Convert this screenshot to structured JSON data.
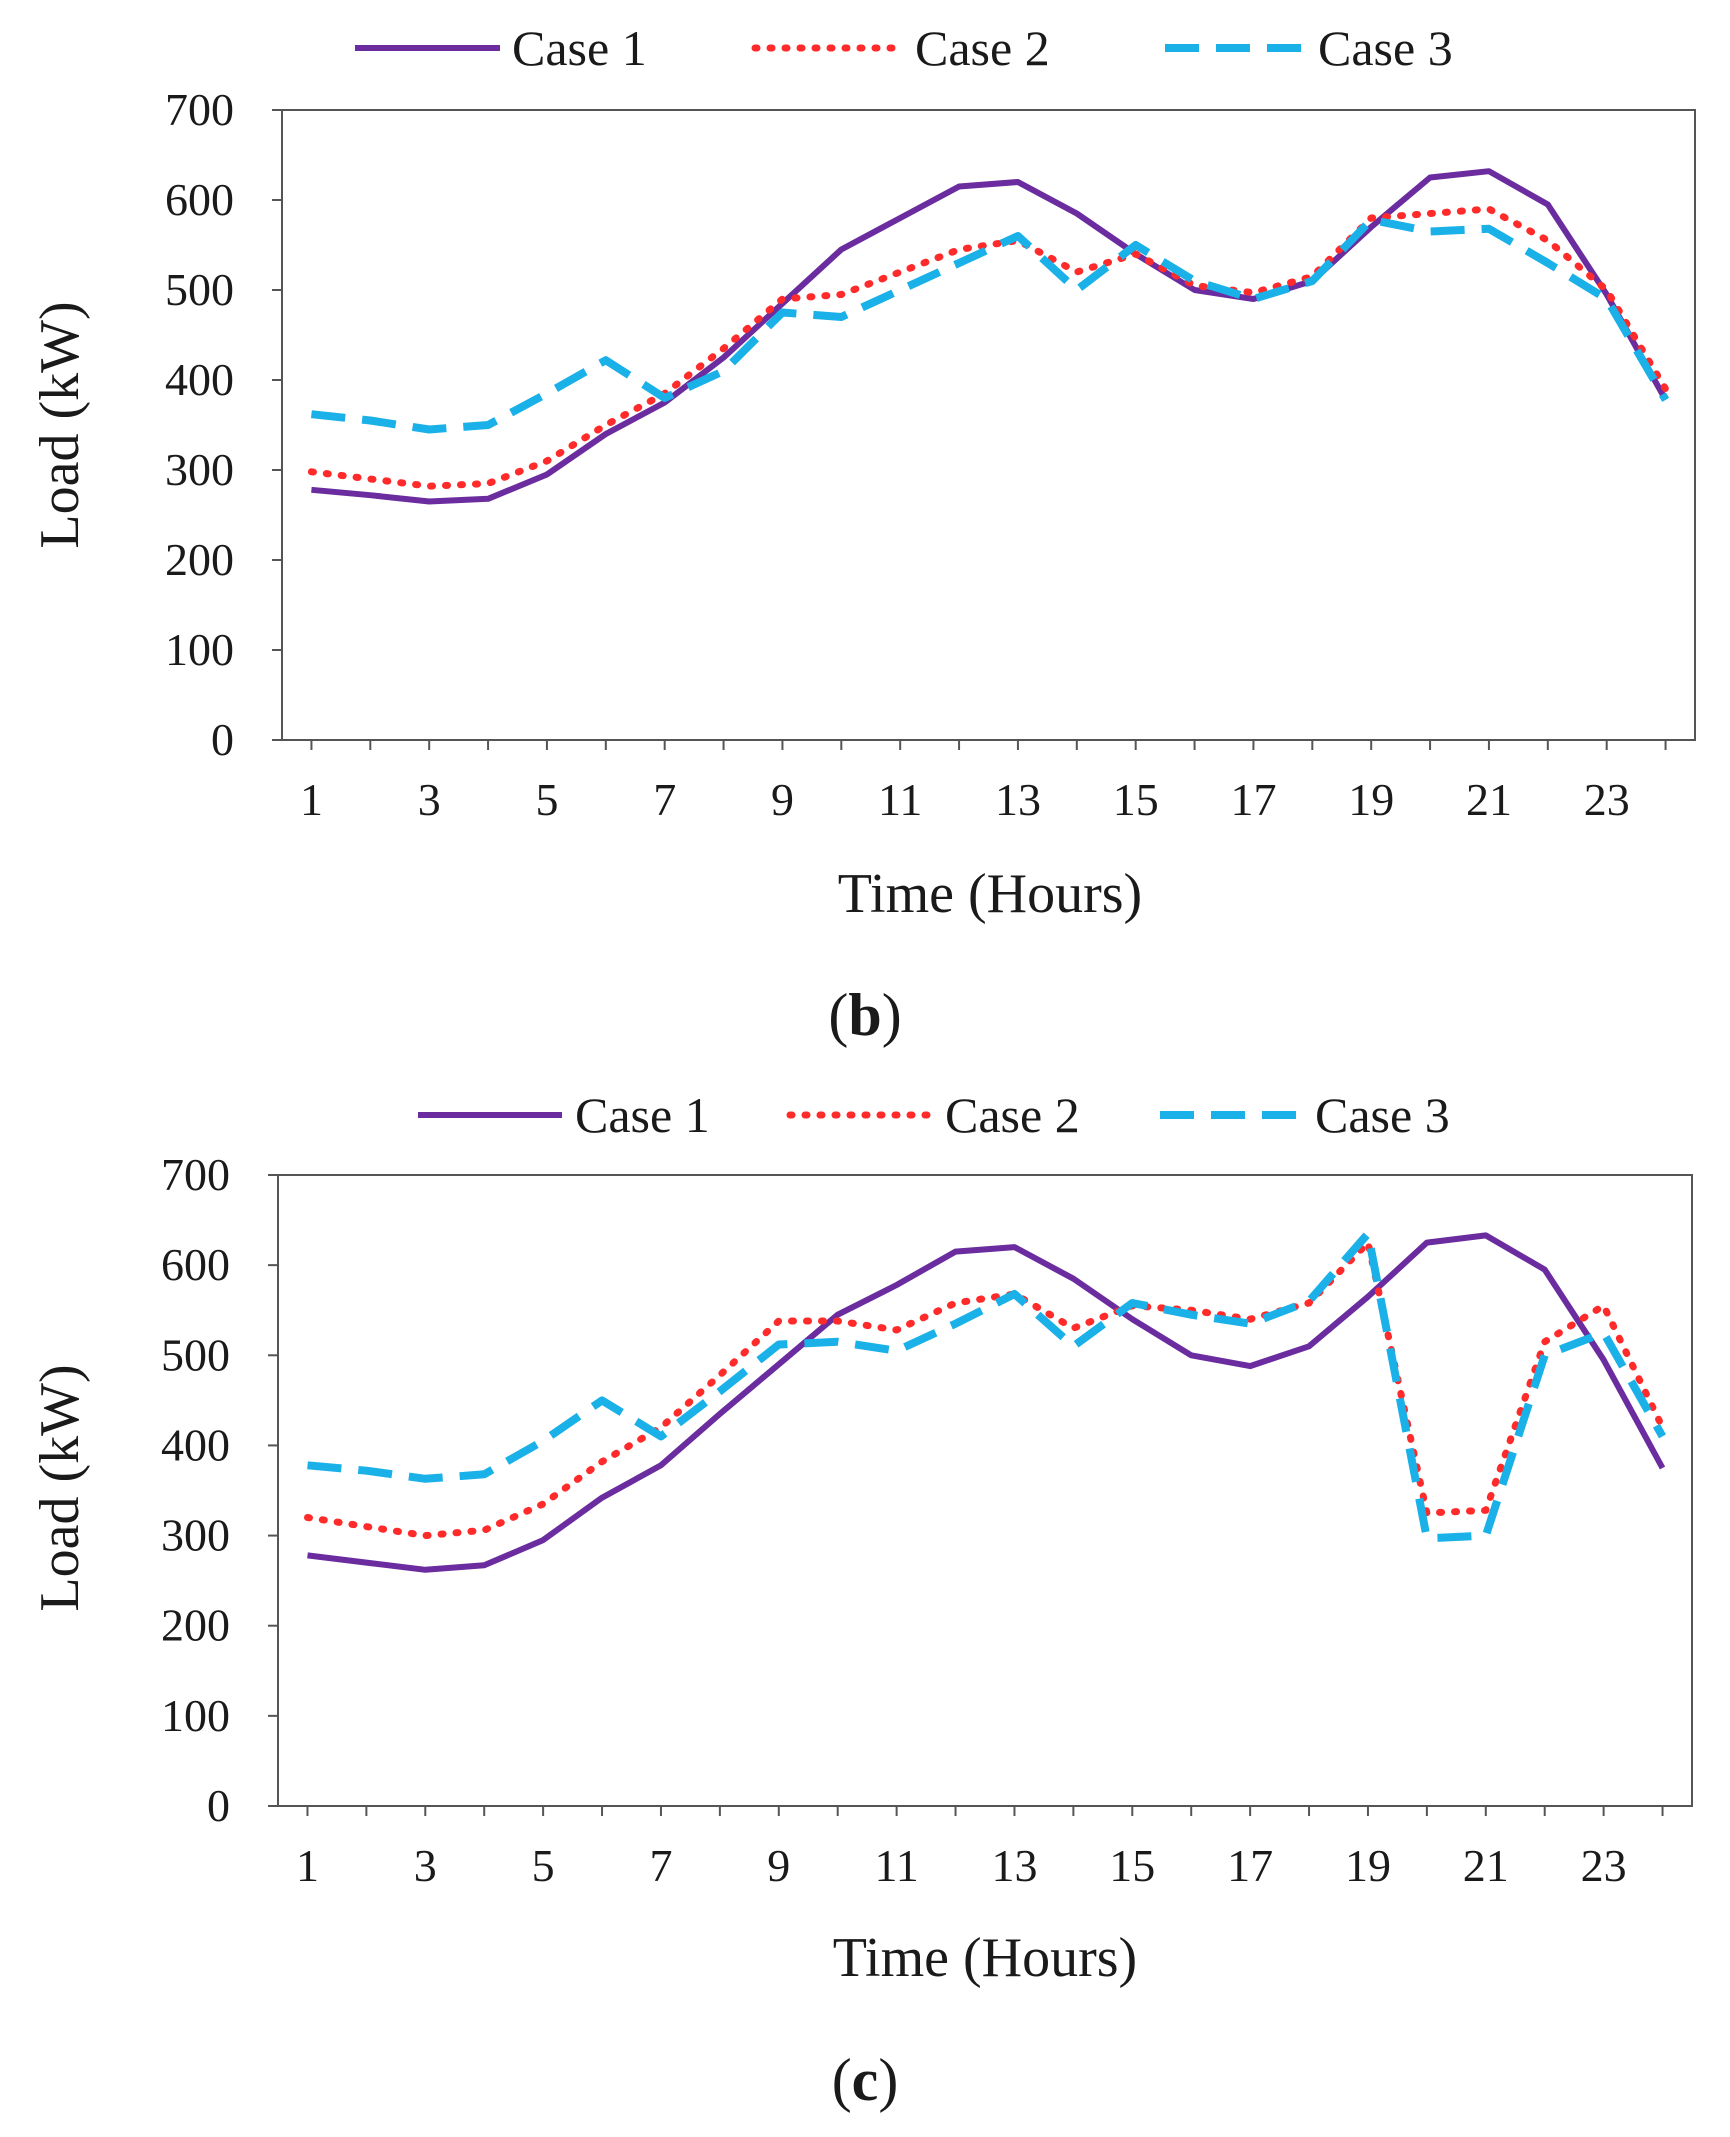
{
  "colors": {
    "case1": "#6a2c9e",
    "case2": "#ff2a2a",
    "case3": "#1ab0e8",
    "axis": "#555555"
  },
  "chart_data": [
    {
      "type": "line",
      "panel": "b",
      "panel_label": {
        "open": "(",
        "letter": "b",
        "close": ")"
      },
      "title": "",
      "xlabel": "Time (Hours)",
      "ylabel": "Load (kW)",
      "xlim": [
        0.5,
        24.5
      ],
      "ylim": [
        0,
        700
      ],
      "x_ticks": [
        "1",
        "3",
        "5",
        "7",
        "9",
        "11",
        "13",
        "15",
        "17",
        "19",
        "21",
        "23"
      ],
      "y_ticks": [
        "0",
        "100",
        "200",
        "300",
        "400",
        "500",
        "600",
        "700"
      ],
      "grid": false,
      "legend_position": "top",
      "x": [
        1,
        2,
        3,
        4,
        5,
        6,
        7,
        8,
        9,
        10,
        11,
        12,
        13,
        14,
        15,
        16,
        17,
        18,
        19,
        20,
        21,
        22,
        23,
        24
      ],
      "series": [
        {
          "name": "Case 1",
          "style": "solid",
          "values": [
            278,
            272,
            265,
            268,
            295,
            340,
            375,
            425,
            485,
            545,
            580,
            615,
            620,
            585,
            540,
            500,
            490,
            510,
            570,
            625,
            632,
            595,
            495,
            378
          ]
        },
        {
          "name": "Case 2",
          "style": "dotted",
          "values": [
            298,
            290,
            282,
            285,
            310,
            350,
            385,
            435,
            490,
            495,
            520,
            545,
            555,
            520,
            540,
            505,
            497,
            515,
            580,
            585,
            590,
            555,
            500,
            390
          ]
        },
        {
          "name": "Case 3",
          "style": "dashed",
          "values": [
            362,
            355,
            345,
            350,
            385,
            422,
            380,
            410,
            475,
            470,
            500,
            530,
            560,
            500,
            550,
            510,
            490,
            510,
            578,
            565,
            568,
            530,
            490,
            378
          ]
        }
      ]
    },
    {
      "type": "line",
      "panel": "c",
      "panel_label": {
        "open": "(",
        "letter": "c",
        "close": ")"
      },
      "title": "",
      "xlabel": "Time (Hours)",
      "ylabel": "Load (kW)",
      "xlim": [
        0.5,
        24.5
      ],
      "ylim": [
        0,
        700
      ],
      "x_ticks": [
        "1",
        "3",
        "5",
        "7",
        "9",
        "11",
        "13",
        "15",
        "17",
        "19",
        "21",
        "23"
      ],
      "y_ticks": [
        "0",
        "100",
        "200",
        "300",
        "400",
        "500",
        "600",
        "700"
      ],
      "grid": false,
      "legend_position": "top",
      "x": [
        1,
        2,
        3,
        4,
        5,
        6,
        7,
        8,
        9,
        10,
        11,
        12,
        13,
        14,
        15,
        16,
        17,
        18,
        19,
        20,
        21,
        22,
        23,
        24
      ],
      "series": [
        {
          "name": "Case 1",
          "style": "solid",
          "values": [
            278,
            270,
            262,
            267,
            295,
            342,
            378,
            435,
            490,
            545,
            578,
            615,
            620,
            585,
            540,
            500,
            488,
            510,
            565,
            625,
            633,
            595,
            495,
            375
          ]
        },
        {
          "name": "Case 2",
          "style": "dotted",
          "values": [
            320,
            310,
            300,
            306,
            335,
            382,
            420,
            478,
            538,
            538,
            528,
            558,
            568,
            530,
            555,
            550,
            540,
            558,
            625,
            325,
            328,
            515,
            555,
            420
          ]
        },
        {
          "name": "Case 3",
          "style": "dashed",
          "values": [
            378,
            372,
            363,
            368,
            405,
            450,
            410,
            460,
            512,
            515,
            505,
            535,
            568,
            510,
            558,
            545,
            535,
            560,
            635,
            297,
            300,
            500,
            525,
            410
          ]
        }
      ]
    }
  ]
}
